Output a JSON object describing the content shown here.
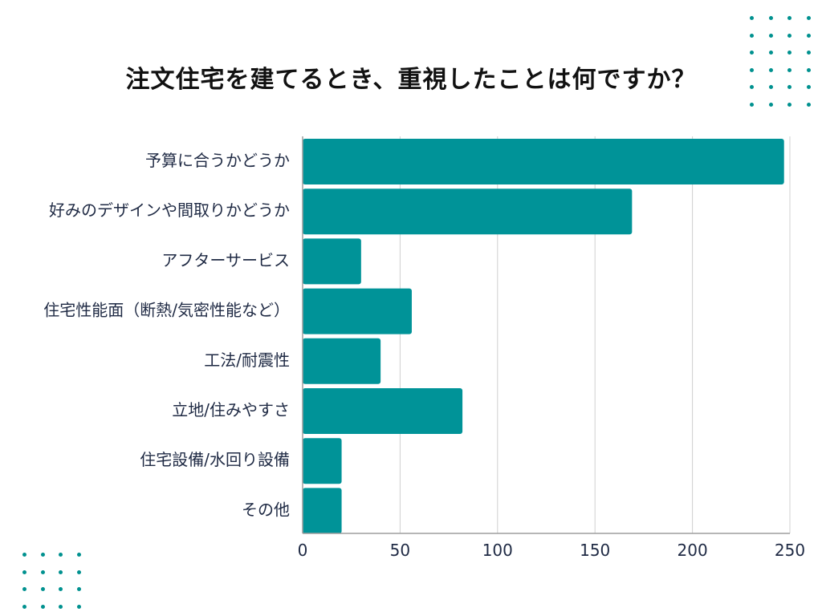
{
  "title": "注文住宅を建てるとき、重視したことは何ですか？",
  "colors": {
    "bar": "#009398",
    "grid": "#d0d0d0",
    "axis": "#9e9e9e",
    "dots": "#00918f"
  },
  "chart_data": {
    "type": "bar",
    "orientation": "horizontal",
    "title": "注文住宅を建てるとき、重視したことは何ですか？",
    "xlabel": "",
    "ylabel": "",
    "categories": [
      "予算に合うかどうか",
      "好みのデザインや間取りかどうか",
      "アフターサービス",
      "住宅性能面（断熱/気密性能など）",
      "工法/耐震性",
      "立地/住みやすさ",
      "住宅設備/水回り設備",
      "その他"
    ],
    "values": [
      247,
      169,
      30,
      56,
      40,
      82,
      20,
      20
    ],
    "xlim": [
      0,
      250
    ],
    "xticks": [
      "0",
      "50",
      "100",
      "150",
      "200",
      "250"
    ],
    "grid": true
  }
}
